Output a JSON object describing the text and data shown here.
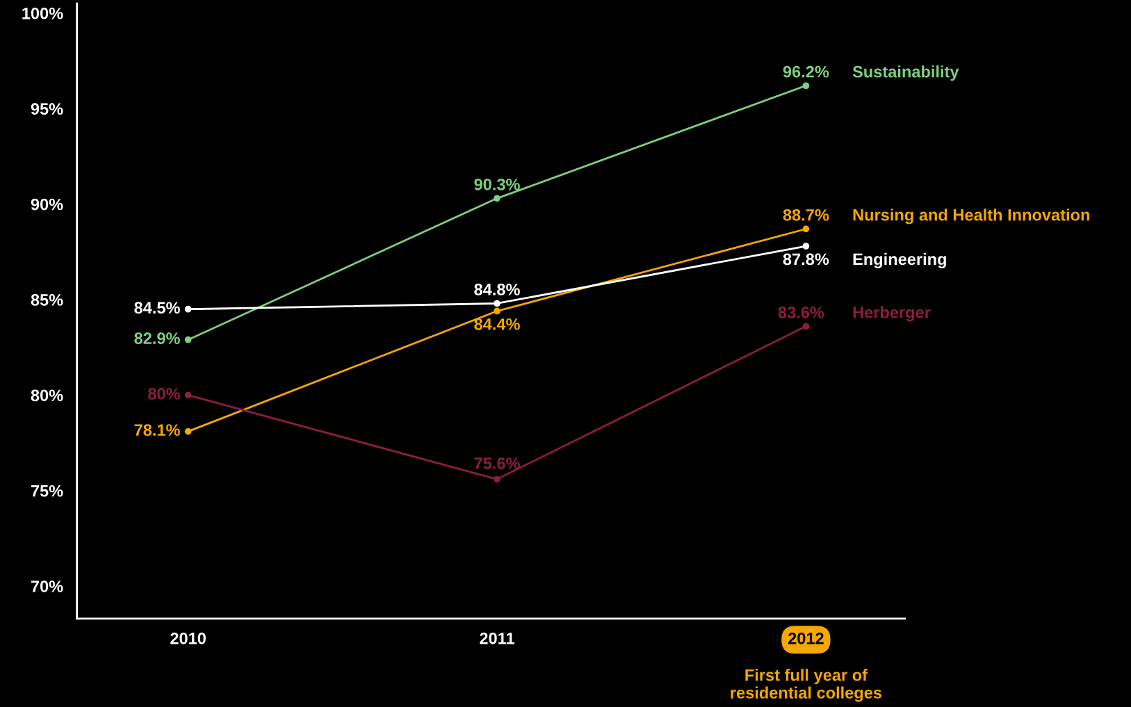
{
  "chart_data": {
    "type": "line",
    "categories": [
      "2010",
      "2011",
      "2012"
    ],
    "series": [
      {
        "name": "Sustainability",
        "color": "#7ed07e",
        "values": [
          82.9,
          90.3,
          96.2
        ]
      },
      {
        "name": "Nursing and Health Innovation",
        "color": "#f5a800",
        "values": [
          78.1,
          84.4,
          88.7
        ]
      },
      {
        "name": "Engineering",
        "color": "#ffffff",
        "values": [
          84.5,
          84.8,
          87.8
        ]
      },
      {
        "name": "Herberger",
        "color": "#8c1d40",
        "values": [
          80,
          75.6,
          83.6
        ]
      }
    ],
    "ylim": [
      68.3,
      100.5
    ],
    "yticks": [
      {
        "value": 70,
        "label": "70%"
      },
      {
        "value": 75,
        "label": "75%"
      },
      {
        "value": 80,
        "label": "80%"
      },
      {
        "value": 85,
        "label": "85%"
      },
      {
        "value": 90,
        "label": "90%"
      },
      {
        "value": 95,
        "label": "95%"
      },
      {
        "value": 100,
        "label": "100%"
      }
    ],
    "value_labels": [
      [
        "82.9%",
        "90.3%",
        "96.2%"
      ],
      [
        "78.1%",
        "84.4%",
        "88.7%"
      ],
      [
        "84.5%",
        "84.8%",
        "87.8%"
      ],
      [
        "80%",
        "75.6%",
        "83.6%"
      ]
    ],
    "marker": "circle",
    "line_style": "solid",
    "grid": false,
    "legend": false,
    "annotations": [
      "First full year of\nresidential colleges"
    ]
  }
}
